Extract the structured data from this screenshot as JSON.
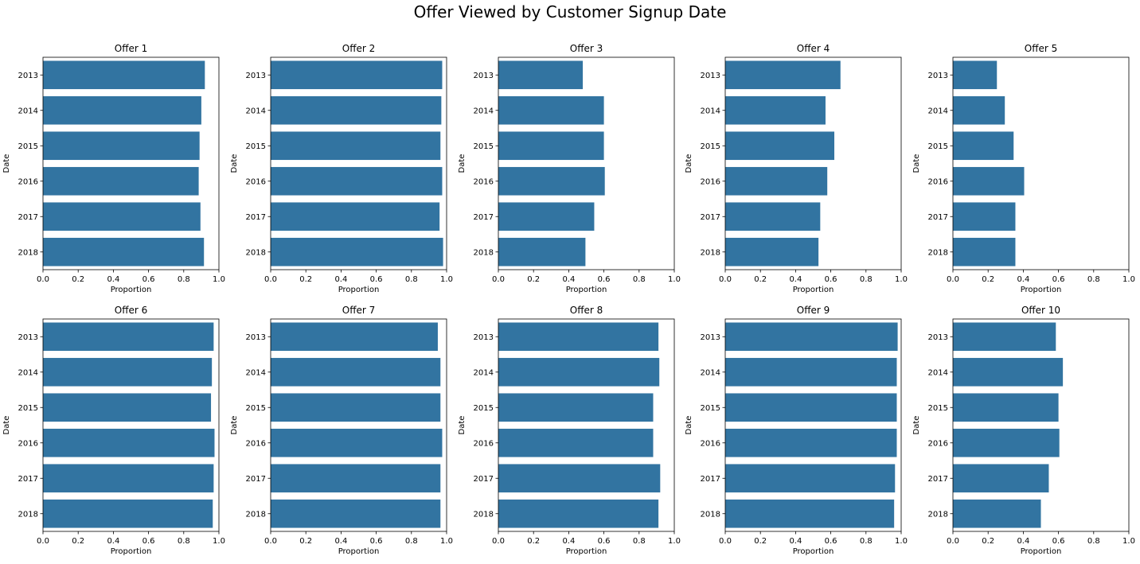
{
  "chart_data": {
    "type": "bar",
    "orientation": "horizontal",
    "title": "Offer Viewed by Customer Signup Date",
    "xlabel": "Proportion",
    "ylabel": "Date",
    "xlim": [
      0,
      1.0
    ],
    "xticks": [
      "0.0",
      "0.2",
      "0.4",
      "0.6",
      "0.8",
      "1.0"
    ],
    "grid": false,
    "bar_color": "#3274a1",
    "categories": [
      "2013",
      "2014",
      "2015",
      "2016",
      "2017",
      "2018"
    ],
    "panels": [
      {
        "title": "Offer 1",
        "values": [
          0.92,
          0.9,
          0.89,
          0.885,
          0.895,
          0.915
        ]
      },
      {
        "title": "Offer 2",
        "values": [
          0.975,
          0.97,
          0.965,
          0.975,
          0.96,
          0.98
        ]
      },
      {
        "title": "Offer 3",
        "values": [
          0.48,
          0.6,
          0.6,
          0.605,
          0.545,
          0.495
        ]
      },
      {
        "title": "Offer 4",
        "values": [
          0.655,
          0.57,
          0.62,
          0.58,
          0.54,
          0.53
        ]
      },
      {
        "title": "Offer 5",
        "values": [
          0.25,
          0.295,
          0.345,
          0.405,
          0.355,
          0.355
        ]
      },
      {
        "title": "Offer 6",
        "values": [
          0.97,
          0.96,
          0.955,
          0.975,
          0.97,
          0.965
        ]
      },
      {
        "title": "Offer 7",
        "values": [
          0.95,
          0.965,
          0.965,
          0.975,
          0.965,
          0.965
        ]
      },
      {
        "title": "Offer 8",
        "values": [
          0.91,
          0.915,
          0.88,
          0.88,
          0.92,
          0.91
        ]
      },
      {
        "title": "Offer 9",
        "values": [
          0.98,
          0.975,
          0.975,
          0.975,
          0.965,
          0.96
        ]
      },
      {
        "title": "Offer 10",
        "values": [
          0.585,
          0.625,
          0.6,
          0.605,
          0.545,
          0.5
        ]
      }
    ]
  }
}
